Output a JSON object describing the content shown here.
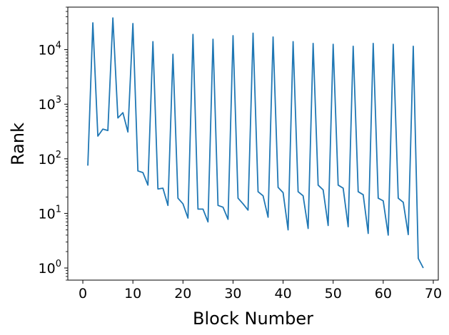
{
  "chart_data": {
    "type": "line",
    "title": "",
    "xlabel": "Block Number",
    "ylabel": "Rank",
    "yscale": "log",
    "xlim": [
      -3,
      71
    ],
    "ylim": [
      0.6,
      60000
    ],
    "grid": false,
    "legend": "none",
    "line_color": "#1f77b4",
    "x_ticks": [
      0,
      10,
      20,
      30,
      40,
      50,
      60,
      70
    ],
    "y_ticks": [
      {
        "base": "10",
        "exp": "0",
        "value": 1
      },
      {
        "base": "10",
        "exp": "1",
        "value": 10
      },
      {
        "base": "10",
        "exp": "2",
        "value": 100
      },
      {
        "base": "10",
        "exp": "3",
        "value": 1000
      },
      {
        "base": "10",
        "exp": "4",
        "value": 10000
      }
    ],
    "series": [
      {
        "x": [
          1,
          2,
          3,
          4,
          5,
          6,
          7,
          8,
          9,
          10,
          11,
          12,
          13,
          14,
          15,
          16,
          17,
          18,
          19,
          20,
          21,
          22,
          23,
          24,
          25,
          26,
          27,
          28,
          29,
          30,
          31,
          32,
          33,
          34,
          35,
          36,
          37,
          38,
          39,
          40,
          41,
          42,
          43,
          44,
          45,
          46,
          47,
          48,
          49,
          50,
          51,
          52,
          53,
          54,
          55,
          56,
          57,
          58,
          59,
          60,
          61,
          62,
          63,
          64,
          65,
          66,
          67,
          68
        ],
        "values": [
          75,
          31000,
          260,
          350,
          330,
          38000,
          560,
          700,
          310,
          30000,
          60,
          56,
          33,
          14000,
          28,
          29,
          14,
          8200,
          19,
          15,
          8.2,
          19000,
          12,
          12,
          7,
          15500,
          14,
          13,
          7.8,
          18000,
          19,
          15,
          11.5,
          20000,
          25,
          21,
          8.5,
          17000,
          30,
          24,
          5,
          14000,
          25,
          21,
          5.3,
          13000,
          33,
          27,
          6,
          12500,
          33,
          29,
          5.7,
          11500,
          25,
          22,
          4.3,
          13000,
          19,
          17,
          4,
          12500,
          19,
          16,
          4.1,
          11500,
          1.5,
          1.0
        ]
      }
    ]
  }
}
